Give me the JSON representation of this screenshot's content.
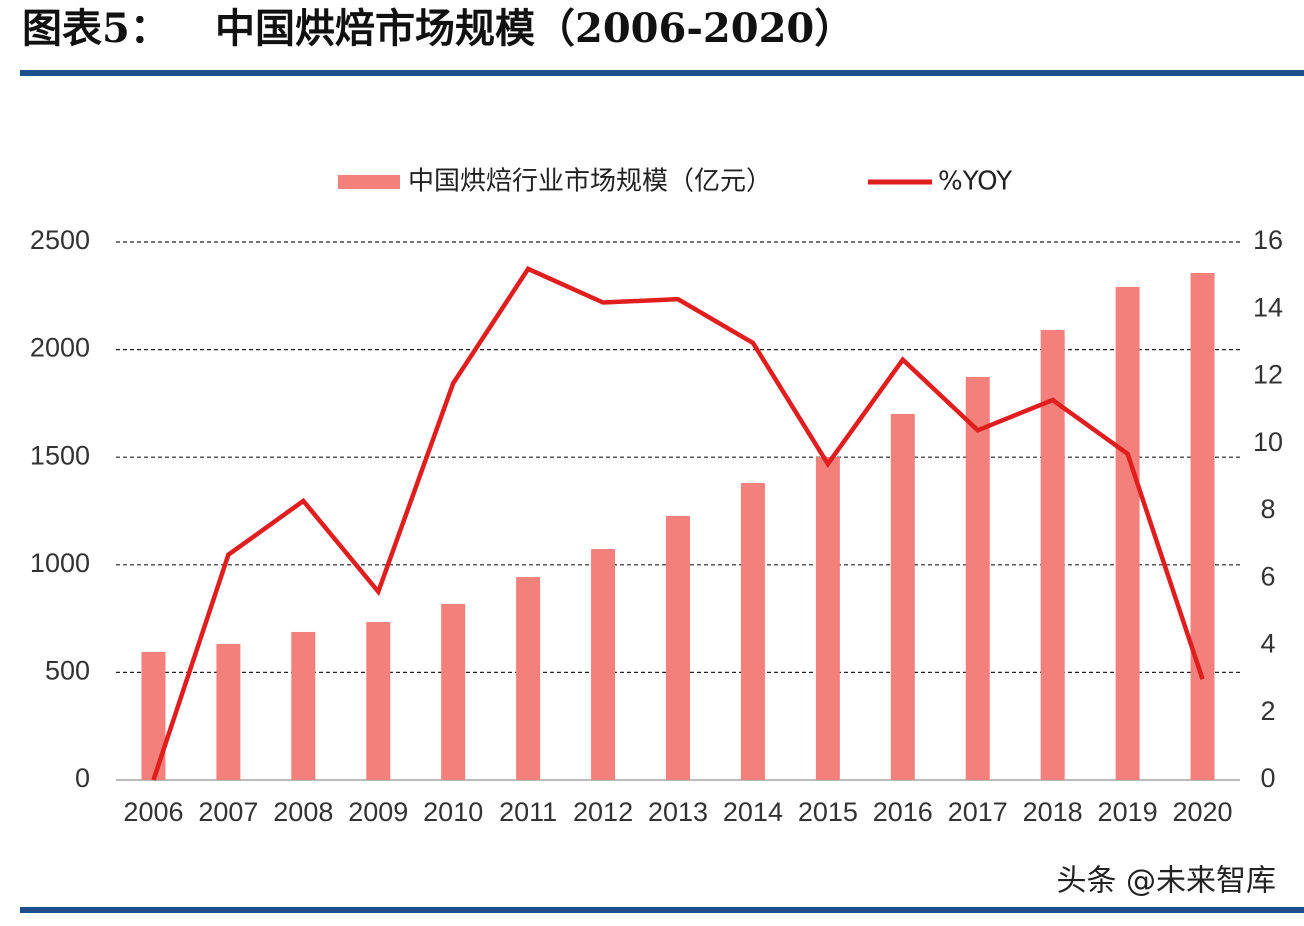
{
  "chart_data": {
    "type": "bar+line",
    "figure_label": "图表5：",
    "title": "中国烘焙市场规模（2006-2020）",
    "categories": [
      "2006",
      "2007",
      "2008",
      "2009",
      "2010",
      "2011",
      "2012",
      "2013",
      "2014",
      "2015",
      "2016",
      "2017",
      "2018",
      "2019",
      "2020"
    ],
    "series": [
      {
        "name": "中国烘焙行业市场规模（亿元）",
        "type": "bar",
        "axis": "y",
        "color": "#f4807c",
        "values": [
          595,
          632,
          688,
          734,
          818,
          943,
          1073,
          1227,
          1380,
          1501,
          1701,
          1873,
          2091,
          2291,
          2356
        ]
      },
      {
        "name": "%YOY",
        "type": "line",
        "axis": "y2",
        "color": "#e01e1e",
        "values": [
          0,
          6.7,
          8.3,
          5.6,
          11.8,
          15.2,
          14.2,
          14.3,
          13.0,
          9.4,
          12.5,
          10.4,
          11.3,
          9.7,
          3.0
        ]
      }
    ],
    "ylim": [
      0,
      2500
    ],
    "yticks": [
      0,
      500,
      1000,
      1500,
      2000,
      2500
    ],
    "y2lim": [
      0,
      16
    ],
    "y2ticks": [
      0,
      2,
      4,
      6,
      8,
      10,
      12,
      14,
      16
    ],
    "grid": true,
    "legend": "top",
    "watermark": "头条 @未来智库"
  }
}
